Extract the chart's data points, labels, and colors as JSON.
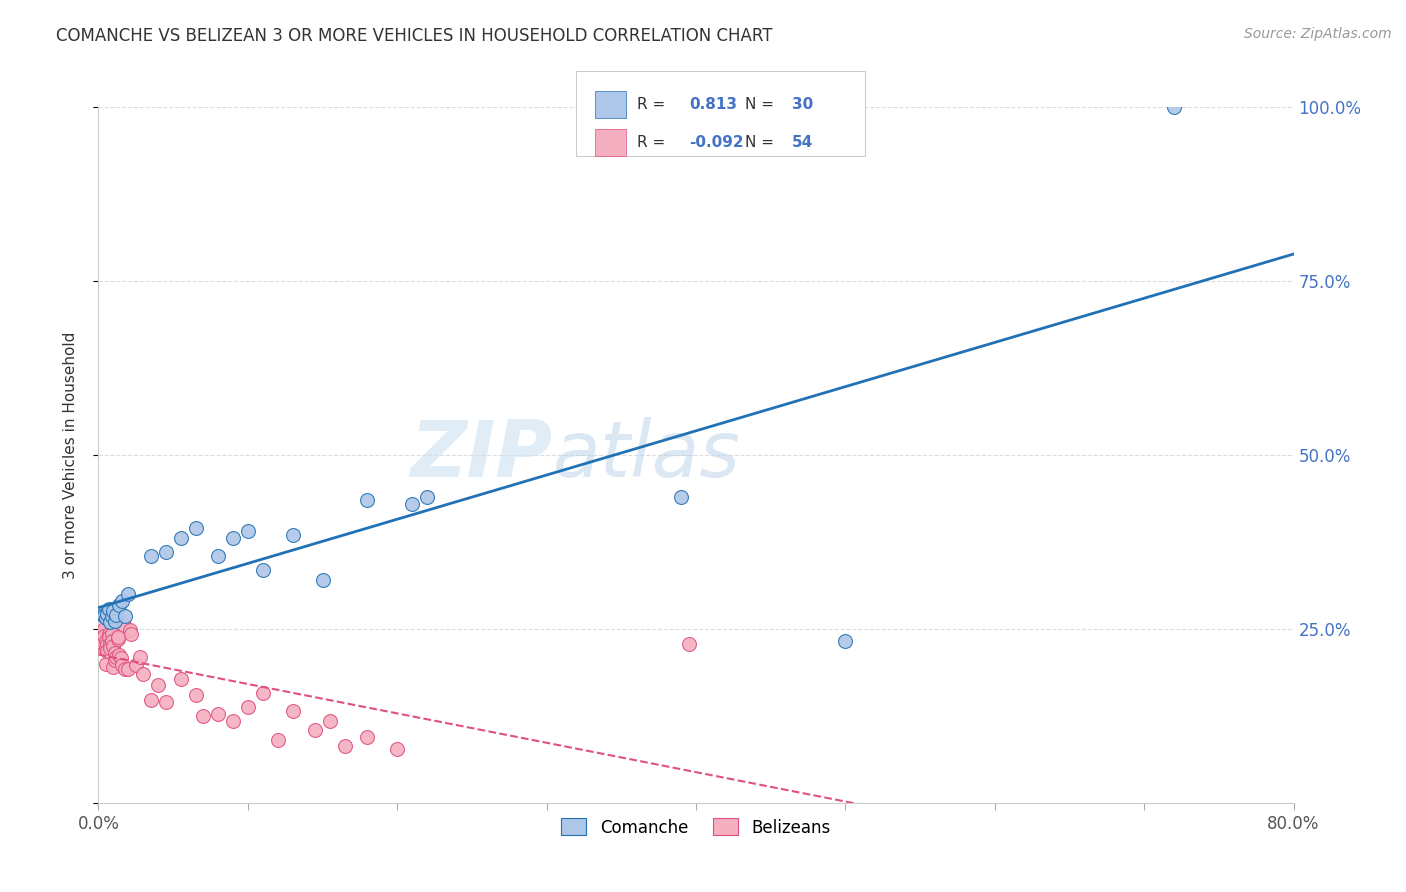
{
  "title": "COMANCHE VS BELIZEAN 3 OR MORE VEHICLES IN HOUSEHOLD CORRELATION CHART",
  "source": "Source: ZipAtlas.com",
  "ylabel": "3 or more Vehicles in Household",
  "xlim": [
    0.0,
    0.8
  ],
  "ylim": [
    0.0,
    1.0
  ],
  "comanche_R": 0.813,
  "comanche_N": 30,
  "belizean_R": -0.092,
  "belizean_N": 54,
  "comanche_color": "#aec6e8",
  "belizean_color": "#f4afc0",
  "comanche_line_color": "#2171b5",
  "belizean_line_color": "#e05080",
  "watermark_zip": "ZIP",
  "watermark_atlas": "atlas",
  "comanche_x": [
    0.003,
    0.004,
    0.005,
    0.006,
    0.007,
    0.008,
    0.009,
    0.01,
    0.011,
    0.012,
    0.014,
    0.016,
    0.018,
    0.02,
    0.035,
    0.045,
    0.055,
    0.065,
    0.08,
    0.09,
    0.1,
    0.11,
    0.13,
    0.15,
    0.18,
    0.21,
    0.22,
    0.39,
    0.5,
    0.72
  ],
  "comanche_y": [
    0.27,
    0.268,
    0.265,
    0.272,
    0.278,
    0.26,
    0.268,
    0.275,
    0.262,
    0.27,
    0.285,
    0.29,
    0.268,
    0.3,
    0.355,
    0.36,
    0.38,
    0.395,
    0.355,
    0.38,
    0.39,
    0.335,
    0.385,
    0.32,
    0.435,
    0.43,
    0.44,
    0.44,
    0.232,
    1.0
  ],
  "belizean_x": [
    0.001,
    0.002,
    0.002,
    0.003,
    0.003,
    0.004,
    0.004,
    0.005,
    0.005,
    0.005,
    0.006,
    0.006,
    0.007,
    0.007,
    0.008,
    0.008,
    0.009,
    0.009,
    0.01,
    0.01,
    0.011,
    0.011,
    0.012,
    0.013,
    0.013,
    0.014,
    0.015,
    0.016,
    0.017,
    0.018,
    0.02,
    0.021,
    0.022,
    0.025,
    0.028,
    0.03,
    0.035,
    0.04,
    0.045,
    0.055,
    0.065,
    0.07,
    0.08,
    0.09,
    0.1,
    0.11,
    0.12,
    0.13,
    0.145,
    0.155,
    0.165,
    0.18,
    0.2,
    0.395
  ],
  "belizean_y": [
    0.23,
    0.225,
    0.235,
    0.245,
    0.228,
    0.25,
    0.24,
    0.222,
    0.232,
    0.2,
    0.228,
    0.218,
    0.242,
    0.238,
    0.228,
    0.222,
    0.242,
    0.232,
    0.195,
    0.225,
    0.215,
    0.205,
    0.21,
    0.235,
    0.238,
    0.212,
    0.208,
    0.198,
    0.255,
    0.192,
    0.192,
    0.248,
    0.242,
    0.198,
    0.21,
    0.185,
    0.148,
    0.17,
    0.145,
    0.178,
    0.155,
    0.125,
    0.128,
    0.118,
    0.138,
    0.158,
    0.09,
    0.132,
    0.105,
    0.118,
    0.082,
    0.095,
    0.078,
    0.228
  ]
}
